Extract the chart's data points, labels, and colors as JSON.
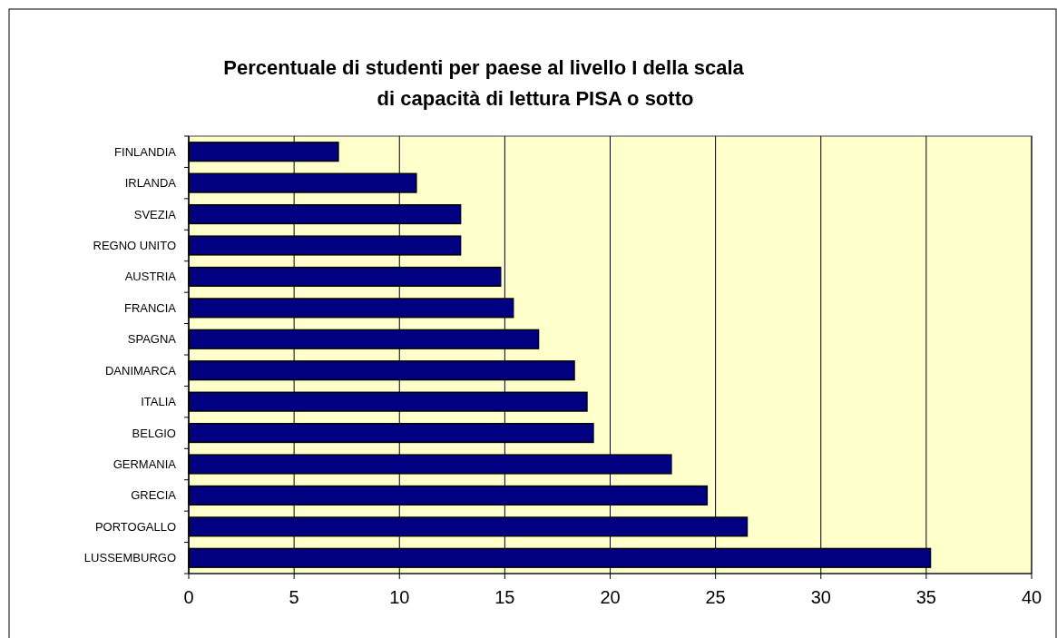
{
  "chart_data": {
    "type": "bar",
    "orientation": "horizontal",
    "title": "Percentuale di studenti per paese al livello I della scala\ndi capacità di lettura PISA o sotto",
    "categories": [
      "FINLANDIA",
      "IRLANDA",
      "SVEZIA",
      "REGNO UNITO",
      "AUSTRIA",
      "FRANCIA",
      "SPAGNA",
      "DANIMARCA",
      "ITALIA",
      "BELGIO",
      "GERMANIA",
      "GRECIA",
      "PORTOGALLO",
      "LUSSEMBURGO"
    ],
    "values": [
      7.1,
      10.8,
      12.9,
      12.9,
      14.8,
      15.4,
      16.6,
      18.3,
      18.9,
      19.2,
      22.9,
      24.6,
      26.5,
      35.2
    ],
    "color": "#000080",
    "xlim": [
      0,
      40
    ],
    "xticks": [
      0,
      5,
      10,
      15,
      20,
      25,
      30,
      35,
      40
    ],
    "grid": "x"
  }
}
